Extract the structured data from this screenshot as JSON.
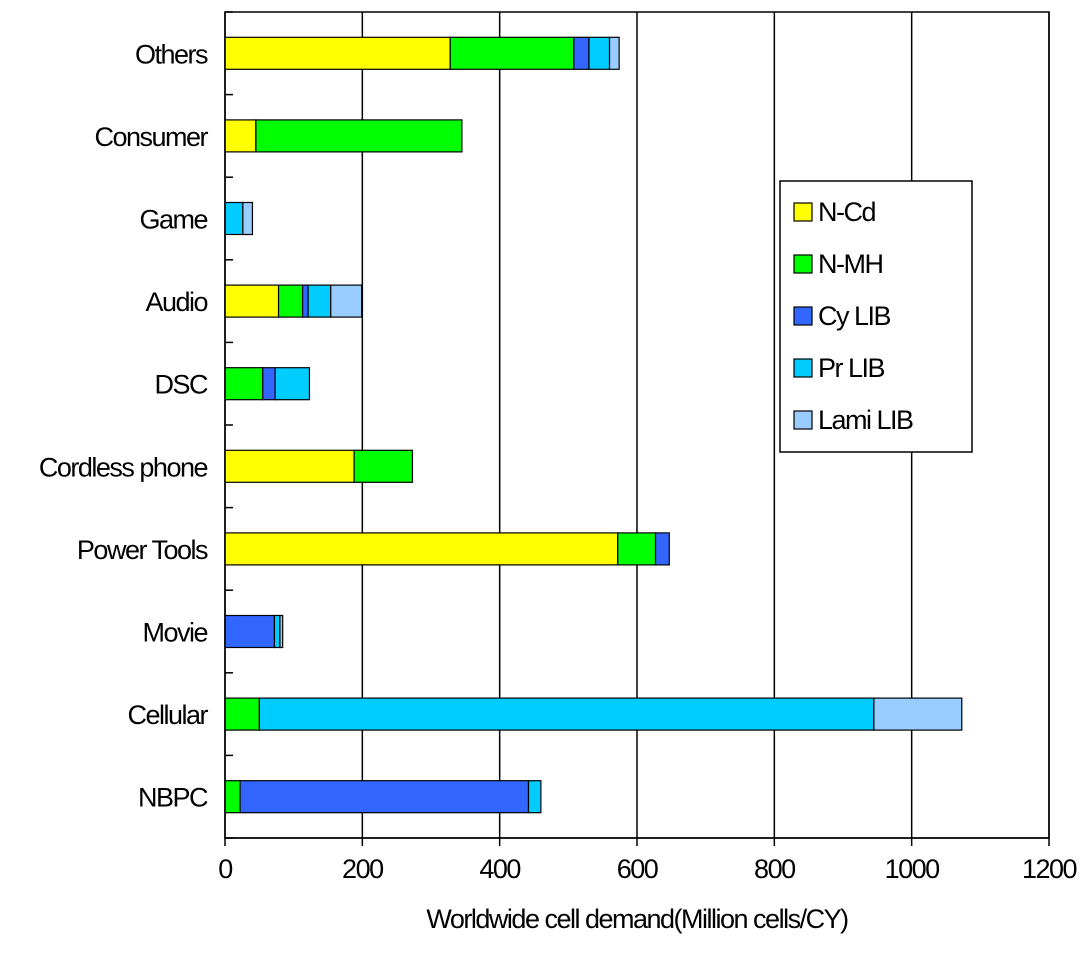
{
  "chart_data": {
    "type": "bar",
    "orientation": "horizontal",
    "stacked": true,
    "categories": [
      "NBPC",
      "Cellular",
      "Movie",
      "Power Tools",
      "Cordless phone",
      "DSC",
      "Audio",
      "Game",
      "Consumer",
      "Others"
    ],
    "series": [
      {
        "name": "N-Cd",
        "color": "#ffff00",
        "values": [
          0,
          0,
          0,
          572,
          188,
          0,
          78,
          0,
          45,
          328
        ]
      },
      {
        "name": "N-MH",
        "color": "#00ff00",
        "values": [
          22,
          50,
          0,
          55,
          85,
          55,
          35,
          0,
          300,
          180
        ]
      },
      {
        "name": "Cy LIB",
        "color": "#3366ff",
        "values": [
          420,
          0,
          72,
          20,
          0,
          18,
          8,
          0,
          0,
          22
        ]
      },
      {
        "name": "Pr LIB",
        "color": "#00ccff",
        "values": [
          18,
          895,
          8,
          0,
          0,
          50,
          33,
          26,
          0,
          30
        ]
      },
      {
        "name": "Lami LIB",
        "color": "#99ccff",
        "values": [
          0,
          128,
          4,
          0,
          0,
          0,
          45,
          14,
          0,
          14
        ]
      }
    ],
    "xlim": [
      0,
      1200
    ],
    "xticks": [
      "0",
      "200",
      "400",
      "600",
      "800",
      "1000",
      "1200"
    ],
    "xtick_values": [
      0,
      200,
      400,
      600,
      800,
      1000,
      1200
    ],
    "xlabel": "Worldwide cell demand(Million cells/CY)",
    "ylabel": "",
    "title": "",
    "grid": "vertical",
    "legend_position": "right"
  }
}
